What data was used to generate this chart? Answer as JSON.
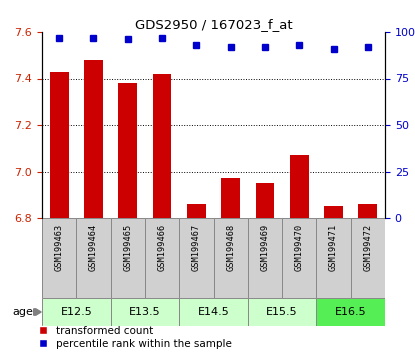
{
  "title": "GDS2950 / 167023_f_at",
  "samples": [
    "GSM199463",
    "GSM199464",
    "GSM199465",
    "GSM199466",
    "GSM199467",
    "GSM199468",
    "GSM199469",
    "GSM199470",
    "GSM199471",
    "GSM199472"
  ],
  "red_values": [
    7.43,
    7.48,
    7.38,
    7.42,
    6.86,
    6.97,
    6.95,
    7.07,
    6.85,
    6.86
  ],
  "blue_values": [
    97,
    97,
    96,
    97,
    93,
    92,
    92,
    93,
    91,
    92
  ],
  "ylim_left": [
    6.8,
    7.6
  ],
  "ylim_right": [
    0,
    100
  ],
  "yticks_left": [
    6.8,
    7.0,
    7.2,
    7.4,
    7.6
  ],
  "yticks_right": [
    0,
    25,
    50,
    75,
    100
  ],
  "age_groups": [
    {
      "label": "E12.5",
      "start": 0,
      "end": 2,
      "color": "#ccffcc"
    },
    {
      "label": "E13.5",
      "start": 2,
      "end": 4,
      "color": "#ccffcc"
    },
    {
      "label": "E14.5",
      "start": 4,
      "end": 6,
      "color": "#ccffcc"
    },
    {
      "label": "E15.5",
      "start": 6,
      "end": 8,
      "color": "#ccffcc"
    },
    {
      "label": "E16.5",
      "start": 8,
      "end": 10,
      "color": "#55ee55"
    }
  ],
  "bar_color": "#cc0000",
  "dot_color": "#0000cc",
  "bar_width": 0.55,
  "sample_box_color": "#d0d0d0",
  "legend_red_label": "transformed count",
  "legend_blue_label": "percentile rank within the sample",
  "age_label": "age",
  "grid_yticks": [
    7.0,
    7.2,
    7.4
  ],
  "left_tick_color": "#cc2200",
  "right_tick_color": "#0000cc"
}
